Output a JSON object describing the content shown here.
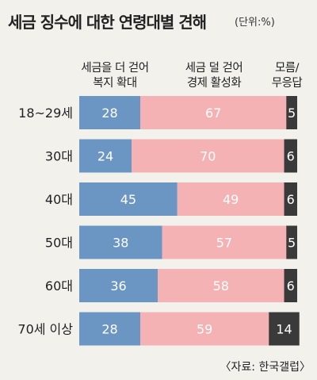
{
  "title": "세금 징수에 대한 연령대별 견해",
  "unit": "(단위:%)",
  "source": "〈자료: 한국갤럽〉",
  "chart_data": {
    "type": "bar",
    "stacked": true,
    "orientation": "horizontal",
    "categories": [
      "18~29세",
      "30대",
      "40대",
      "50대",
      "60대",
      "70세 이상"
    ],
    "series": [
      {
        "name": "세금을 더 걷어\n복지 확대",
        "values": [
          28,
          24,
          45,
          38,
          36,
          28
        ],
        "color": "#6b96c4",
        "labelColor": "#ffffff"
      },
      {
        "name": "세금 덜 걷어\n경제 활성화",
        "values": [
          67,
          70,
          49,
          57,
          58,
          59
        ],
        "color": "#f4b2b4",
        "labelColor": "#ffffff"
      },
      {
        "name": "모름/\n무응답",
        "values": [
          5,
          6,
          6,
          5,
          6,
          14
        ],
        "color": "#3a3a3a",
        "labelColor": "#ffffff"
      }
    ],
    "xlim": [
      0,
      100
    ]
  }
}
